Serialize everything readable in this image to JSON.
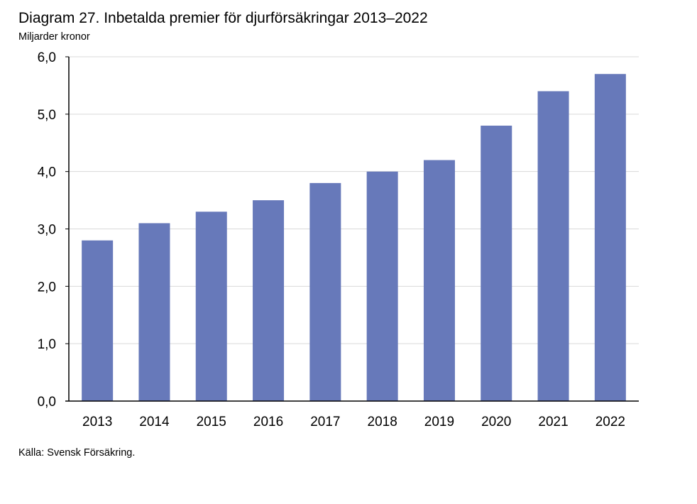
{
  "header": {
    "title": "Diagram 27. Inbetalda premier för djurförsäkringar 2013–2022",
    "unit": "Miljarder kronor"
  },
  "footer": {
    "source": "Källa: Svensk Försäkring."
  },
  "colors": {
    "bar": "#6779BA",
    "grid": "#D9D9D9",
    "axis": "#000000"
  },
  "chart_data": {
    "type": "bar",
    "title": "Diagram 27. Inbetalda premier för djurförsäkringar 2013–2022",
    "ylabel": "Miljarder kronor",
    "xlabel": "",
    "categories": [
      "2013",
      "2014",
      "2015",
      "2016",
      "2017",
      "2018",
      "2019",
      "2020",
      "2021",
      "2022"
    ],
    "values": [
      2.8,
      3.1,
      3.3,
      3.5,
      3.8,
      4.0,
      4.2,
      4.8,
      5.4,
      5.7
    ],
    "ylim": [
      0,
      6
    ],
    "yticks": [
      "0,0",
      "1,0",
      "2,0",
      "3,0",
      "4,0",
      "5,0",
      "6,0"
    ],
    "grid": true,
    "legend": "none"
  }
}
